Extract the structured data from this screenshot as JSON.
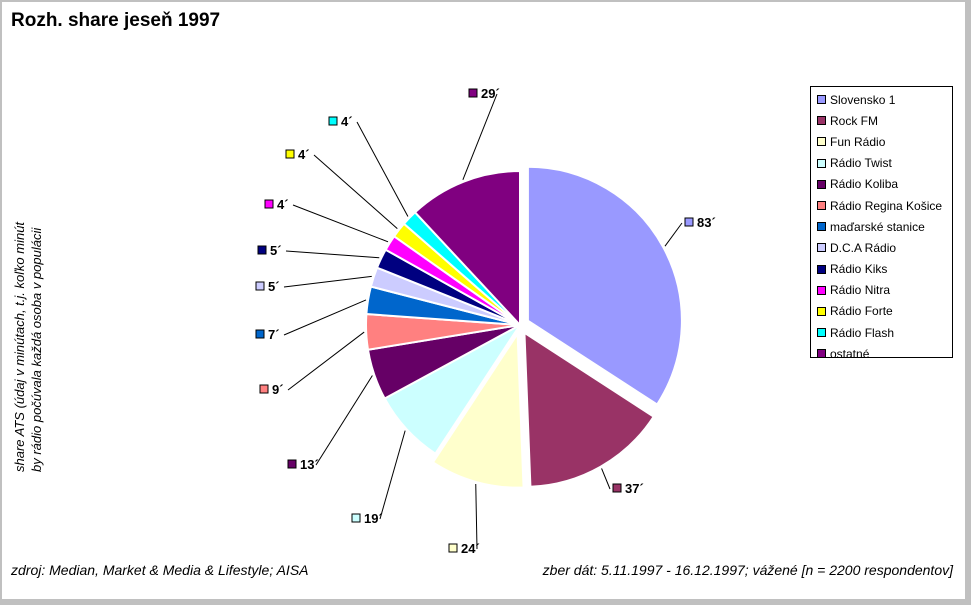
{
  "chart_data": {
    "type": "pie",
    "title": "Rozh. share jeseň 1997",
    "y_note_lines": [
      "share ATS (údaj v minútach, t.j. koľko minút",
      "by rádio počúvala každá osoba v populácii"
    ],
    "categories": [
      "Slovensko 1",
      "Rock FM",
      "Fun Rádio",
      "Rádio Twist",
      "Rádio Koliba",
      "Rádio Regina Košice",
      "maďarské stanice",
      "D.C.A Rádio",
      "Rádio Kiks",
      "Rádio Nitra",
      "Rádio Forte",
      "Rádio Flash",
      "ostatné"
    ],
    "values": [
      83,
      37,
      24,
      19,
      13,
      9,
      7,
      5,
      5,
      4,
      4,
      4,
      29
    ],
    "data_labels": [
      "83´",
      "37´",
      "24´",
      "19´",
      "13´",
      "9´",
      "7´",
      "5´",
      "5´",
      "4´",
      "4´",
      "4´",
      "29´"
    ],
    "colors": [
      "#9999ff",
      "#993366",
      "#ffffcc",
      "#ccffff",
      "#660066",
      "#ff8080",
      "#0066cc",
      "#ccccff",
      "#000080",
      "#ff00ff",
      "#ffff00",
      "#00ffff",
      "#800080"
    ],
    "exploded": [
      "Slovensko 1",
      "Rock FM",
      "Fun Rádio"
    ],
    "legend_placement": "right",
    "source_note": "zdroj: Median, Market & Media & Lifestyle; AISA",
    "collection_note": "zber dát: 5.11.1997 - 16.12.1997; vážené [n = 2200 respondentov]"
  }
}
